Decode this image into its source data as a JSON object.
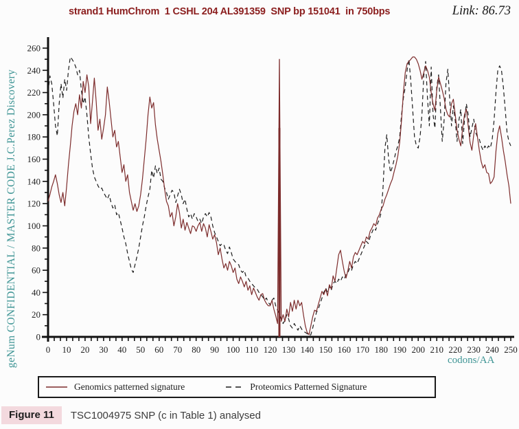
{
  "header": {
    "title": "strand1 HumChrom  1 CSHL 204 AL391359  SNP bp 151041  in 750bps",
    "link_label": "Link: 86.73",
    "title_color": "#8b1e1e"
  },
  "caption": {
    "tag": "Figure 11",
    "text": "TSC1004975 SNP (c in Table 1) analysed",
    "tag_background": "#f3d9de"
  },
  "colors": {
    "genomics_line": "#7c2b2b",
    "proteomics_line": "#1b1b1b",
    "axis": "#111111",
    "axis_title_teal": "#3f9595"
  },
  "chart_data": {
    "type": "line",
    "title": "strand1 HumChrom  1 CSHL 204 AL391359  SNP bp 151041  in 750bps",
    "xlabel": "codons/AA",
    "ylabel": "geNum CONFIDENTIAL / MASTER CODE J.C.Perez Discovery",
    "xlim": [
      0,
      250
    ],
    "ylim": [
      0,
      260
    ],
    "grid": false,
    "legend_position": "bottom-box",
    "x_tick_labels": [
      0,
      10,
      20,
      30,
      40,
      50,
      60,
      70,
      80,
      90,
      100,
      110,
      120,
      130,
      140,
      150,
      160,
      170,
      180,
      190,
      200,
      210,
      220,
      230,
      240,
      250
    ],
    "y_tick_labels": [
      0,
      20,
      40,
      60,
      80,
      100,
      120,
      140,
      160,
      180,
      200,
      220,
      240,
      260
    ],
    "x_minor_tick_step": 3.3333,
    "y_minor_tick_step": 10,
    "snp_marker": {
      "x": 125,
      "from": 0,
      "to": 250,
      "thick_to": 188,
      "color": "#7c2b2b"
    },
    "series": [
      {
        "name": "Genomics patterned signature",
        "style": "solid",
        "color": "#7c2b2b",
        "x_start": 0,
        "x_step": 1,
        "values": [
          122,
          128,
          135,
          140,
          146,
          138,
          128,
          121,
          130,
          118,
          135,
          155,
          172,
          190,
          203,
          210,
          200,
          218,
          206,
          230,
          220,
          236,
          225,
          192,
          212,
          233,
          212,
          186,
          196,
          178,
          188,
          200,
          225,
          212,
          196,
          180,
          186,
          171,
          176,
          162,
          148,
          155,
          140,
          146,
          130,
          122,
          114,
          120,
          113,
          118,
          128,
          142,
          160,
          178,
          200,
          216,
          206,
          211,
          191,
          178,
          168,
          158,
          146,
          133,
          122,
          118,
          108,
          112,
          100,
          108,
          120,
          112,
          98,
          106,
          96,
          103,
          98,
          93,
          100,
          99,
          95,
          100,
          103,
          95,
          102,
          98,
          90,
          101,
          95,
          88,
          92,
          85,
          74,
          80,
          70,
          62,
          66,
          60,
          68,
          64,
          58,
          62,
          52,
          48,
          54,
          50,
          45,
          50,
          42,
          46,
          38,
          44,
          40,
          36,
          33,
          38,
          39,
          33,
          30,
          28,
          28,
          33,
          25,
          19,
          12,
          250,
          14,
          20,
          14,
          25,
          18,
          31,
          23,
          33,
          25,
          33,
          28,
          31,
          20,
          10,
          4,
          2,
          10,
          18,
          24,
          23,
          29,
          35,
          41,
          38,
          43,
          37,
          47,
          43,
          55,
          50,
          62,
          74,
          78,
          68,
          59,
          53,
          60,
          68,
          62,
          72,
          76,
          74,
          78,
          82,
          86,
          84,
          90,
          88,
          95,
          98,
          102,
          100,
          107,
          110,
          115,
          118,
          124,
          128,
          133,
          138,
          142,
          149,
          155,
          163,
          175,
          195,
          220,
          238,
          246,
          248,
          250,
          252,
          252,
          250,
          246,
          240,
          232,
          238,
          244,
          240,
          234,
          220,
          210,
          204,
          222,
          234,
          228,
          222,
          215,
          205,
          200,
          198,
          210,
          214,
          200,
          186,
          178,
          172,
          188,
          200,
          205,
          190,
          175,
          168,
          182,
          192,
          180,
          168,
          158,
          152,
          155,
          148,
          147,
          138,
          140,
          144,
          167,
          183,
          190,
          180,
          168,
          158,
          146,
          136,
          120
        ]
      },
      {
        "name": "Proteomics Patterned Signature",
        "style": "dashed",
        "color": "#1b1b1b",
        "x_start": 0,
        "x_step": 1,
        "values": [
          220,
          235,
          228,
          210,
          190,
          181,
          210,
          228,
          215,
          232,
          222,
          240,
          252,
          250,
          247,
          243,
          236,
          240,
          222,
          210,
          216,
          200,
          180,
          165,
          152,
          144,
          140,
          136,
          133,
          134,
          130,
          127,
          124,
          128,
          121,
          116,
          119,
          110,
          112,
          105,
          98,
          90,
          84,
          75,
          68,
          61,
          58,
          65,
          72,
          80,
          90,
          100,
          108,
          118,
          126,
          133,
          150,
          143,
          154,
          147,
          152,
          142,
          140,
          134,
          130,
          124,
          128,
          132,
          130,
          121,
          127,
          133,
          128,
          120,
          124,
          115,
          108,
          111,
          106,
          111,
          108,
          104,
          106,
          102,
          108,
          111,
          108,
          112,
          108,
          100,
          94,
          90,
          86,
          82,
          84,
          83,
          78,
          75,
          81,
          76,
          70,
          68,
          66,
          65,
          60,
          58,
          60,
          54,
          53,
          50,
          48,
          46,
          44,
          43,
          40,
          38,
          36,
          33,
          35,
          31,
          29,
          33,
          35,
          28,
          24,
          20,
          16,
          12,
          15,
          20,
          16,
          10,
          8,
          12,
          9,
          6,
          10,
          7,
          5,
          4,
          3,
          1,
          2,
          8,
          15,
          22,
          25,
          30,
          35,
          40,
          44,
          40,
          45,
          42,
          48,
          50,
          48,
          52,
          50,
          54,
          52,
          56,
          58,
          62,
          60,
          65,
          68,
          66,
          70,
          74,
          78,
          82,
          86,
          84,
          90,
          94,
          98,
          96,
          102,
          106,
          112,
          135,
          170,
          182,
          160,
          148,
          153,
          160,
          167,
          172,
          180,
          200,
          215,
          225,
          240,
          250,
          230,
          205,
          180,
          172,
          170,
          180,
          200,
          235,
          248,
          215,
          190,
          243,
          200,
          188,
          225,
          236,
          205,
          176,
          195,
          228,
          241,
          215,
          190,
          208,
          195,
          176,
          195,
          205,
          174,
          195,
          210,
          200,
          180,
          188,
          196,
          184,
          180,
          178,
          172,
          168,
          172,
          169,
          172,
          170,
          178,
          195,
          220,
          240,
          244,
          240,
          225,
          205,
          184,
          176,
          172
        ]
      }
    ]
  }
}
